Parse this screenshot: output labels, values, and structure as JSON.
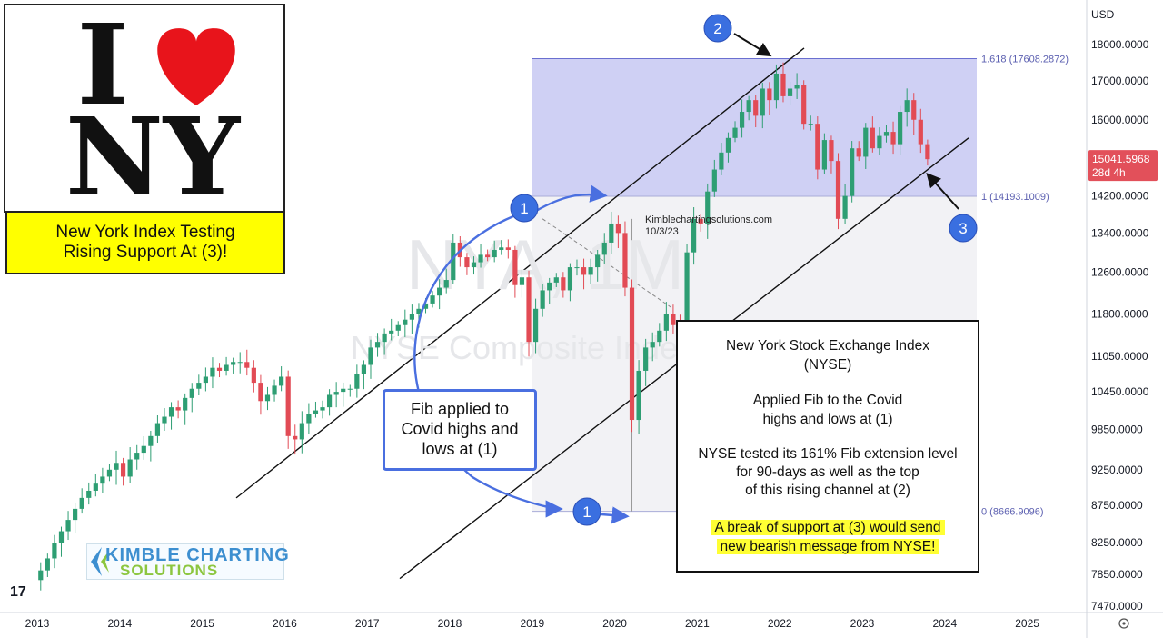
{
  "logo": {
    "letter_i": "I",
    "letters_ny": "NY",
    "heart_color": "#e8141b"
  },
  "headline": "New York Index Testing Rising Support At (3)!",
  "fib_note": "Fib applied to\nCovid highs and\nlows at (1)",
  "watermark": {
    "ticker": "NYA, 1M",
    "name": "NYSE Composite Index"
  },
  "source": {
    "site": "Kimblechartingsolutions.com",
    "date": "10/3/23"
  },
  "info_box": {
    "title_1": "New York Stock Exchange Index",
    "title_2": "(NYSE)",
    "line_1": "Applied Fib to the Covid",
    "line_2": "highs and lows at (1)",
    "line_3": "NYSE tested its 161% Fib extension level",
    "line_4": "for 90-days as well as the top",
    "line_5": "of this rising channel at (2)",
    "highlight_1": "A break of support at (3) would send",
    "highlight_2": "new bearish message from NYSE!"
  },
  "kimble_logo": {
    "line_1": "KIMBLE CHARTING",
    "line_2": "SOLUTIONS"
  },
  "tv_logo": "17",
  "currency": "USD",
  "price_label": {
    "price": "15041.5968",
    "countdown": "28d 4h",
    "color": "#e2505a"
  },
  "markers": [
    {
      "label": "1",
      "color": "#3a6fe0"
    },
    {
      "label": "1",
      "color": "#3a6fe0"
    },
    {
      "label": "2",
      "color": "#3a6fe0"
    },
    {
      "label": "3",
      "color": "#3a6fe0"
    }
  ],
  "colors": {
    "up": "#2e9e73",
    "down": "#e24b55",
    "fib_zone": "#c7c8f2",
    "fib_line": "#6a6fd0",
    "annotation": "#4a6fe0"
  },
  "chart_data": {
    "type": "candlestick",
    "instrument": "NYSE Composite Index",
    "interval": "1M",
    "x_ticks": [
      "2013",
      "2014",
      "2015",
      "2016",
      "2017",
      "2018",
      "2019",
      "2020",
      "2021",
      "2022",
      "2023",
      "2024",
      "2025"
    ],
    "y_ticks": [
      "18000.0000",
      "17000.0000",
      "16000.0000",
      "14200.0000",
      "13400.0000",
      "12600.0000",
      "11800.0000",
      "11050.0000",
      "10450.0000",
      "9850.0000",
      "9250.0000",
      "8750.0000",
      "8250.0000",
      "7850.0000",
      "7470.0000"
    ],
    "y_scale": "log",
    "fib_levels": [
      {
        "label": "1.618 (17608.2872)",
        "value": 17608.2872
      },
      {
        "label": "1 (14193.1009)",
        "value": 14193.1009
      },
      {
        "label": "0 (8666.9096)",
        "value": 8666.9096
      }
    ],
    "last_price": 15041.5968,
    "monthly_closes": [
      {
        "year": 2013,
        "close": [
          7900,
          8050,
          8250,
          8400,
          8550,
          8700,
          8850,
          8950,
          9050,
          9150,
          9250,
          9350
        ]
      },
      {
        "year": 2014,
        "close": [
          9150,
          9400,
          9500,
          9600,
          9750,
          9950,
          10050,
          10200,
          10150,
          10350,
          10500,
          10600
        ]
      },
      {
        "year": 2015,
        "close": [
          10700,
          10850,
          10800,
          10900,
          10950,
          10950,
          10850,
          10600,
          10300,
          10400,
          10550,
          10700
        ]
      },
      {
        "year": 2016,
        "close": [
          9750,
          9700,
          9950,
          10100,
          10150,
          10200,
          10400,
          10450,
          10500,
          10500,
          10750,
          10900
        ]
      },
      {
        "year": 2017,
        "close": [
          11200,
          11300,
          11450,
          11500,
          11600,
          11700,
          11800,
          11900,
          12000,
          12150,
          12300,
          12450
        ]
      },
      {
        "year": 2018,
        "close": [
          13200,
          12900,
          12700,
          12800,
          12950,
          12900,
          13050,
          13100,
          13050,
          12350,
          12500,
          11300
        ]
      },
      {
        "year": 2019,
        "close": [
          11900,
          12250,
          12400,
          12500,
          12250,
          12700,
          12700,
          12550,
          12700,
          12950,
          13200,
          13600
        ]
      },
      {
        "year": 2020,
        "close": [
          13400,
          12300,
          10000,
          10800,
          11200,
          11300,
          11500,
          11800,
          11600,
          11500,
          13000,
          13700
        ]
      },
      {
        "year": 2021,
        "close": [
          13600,
          14300,
          14800,
          15200,
          15550,
          15800,
          16200,
          16500,
          16100,
          16800,
          16500,
          17200
        ]
      },
      {
        "year": 2022,
        "close": [
          16600,
          16800,
          16900,
          15900,
          15900,
          14800,
          15500,
          15000,
          13700,
          14200,
          15300,
          15100
        ]
      },
      {
        "year": 2023,
        "close": [
          15800,
          15300,
          15600,
          15700,
          15400,
          16200,
          16500,
          16000,
          15400,
          15041.5968
        ]
      }
    ]
  }
}
